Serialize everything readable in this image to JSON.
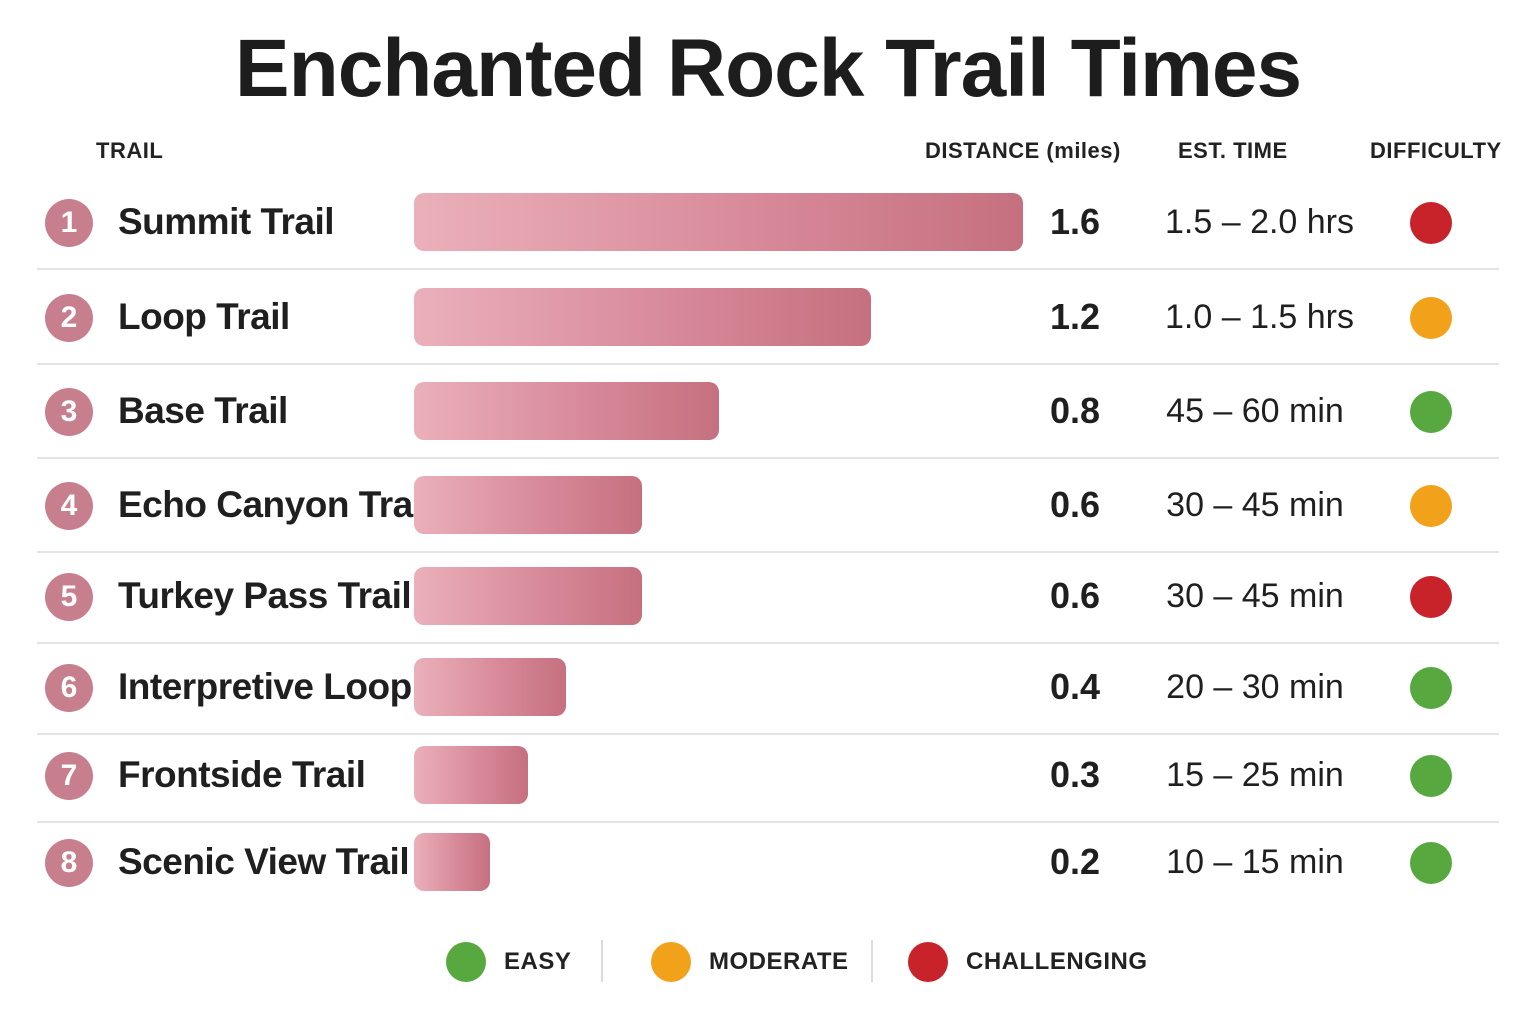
{
  "title": "Enchanted Rock Trail Times",
  "headers": {
    "trail": "TRAIL",
    "distance": "DISTANCE (miles)",
    "time": "EST. TIME",
    "difficulty": "DIFFICULTY"
  },
  "colors": {
    "easy": "#57a83f",
    "moderate": "#f1a21a",
    "challenging": "#c8222a",
    "bar": "#d88a9a",
    "badge": "#c77f8e"
  },
  "legend": [
    {
      "key": "easy",
      "label": "EASY"
    },
    {
      "key": "moderate",
      "label": "MODERATE"
    },
    {
      "key": "challenging",
      "label": "CHALLENGING"
    }
  ],
  "chart_data": {
    "type": "bar",
    "orientation": "horizontal",
    "title": "Enchanted Rock Trail Times",
    "xlabel": "DISTANCE (miles)",
    "xlim": [
      0,
      1.6
    ],
    "categories": [
      "Summit Trail",
      "Loop Trail",
      "Base Trail",
      "Echo Canyon Trail",
      "Turkey Pass Trail",
      "Interpretive Loop",
      "Frontside Trail",
      "Scenic View Trail"
    ],
    "values": [
      1.6,
      1.2,
      0.8,
      0.6,
      0.6,
      0.4,
      0.3,
      0.2
    ],
    "rows": [
      {
        "rank": "1",
        "name": "Summit Trail",
        "distance": 1.6,
        "distance_label": "1.6",
        "time": "1.5 – 2.0 hrs",
        "difficulty": "challenging"
      },
      {
        "rank": "2",
        "name": "Loop Trail",
        "distance": 1.2,
        "distance_label": "1.2",
        "time": "1.0 – 1.5 hrs",
        "difficulty": "moderate"
      },
      {
        "rank": "3",
        "name": "Base Trail",
        "distance": 0.8,
        "distance_label": "0.8",
        "time": "45 – 60 min",
        "difficulty": "easy"
      },
      {
        "rank": "4",
        "name": "Echo Canyon Trail",
        "distance": 0.6,
        "distance_label": "0.6",
        "time": "30 – 45 min",
        "difficulty": "moderate"
      },
      {
        "rank": "5",
        "name": "Turkey Pass Trail",
        "distance": 0.6,
        "distance_label": "0.6",
        "time": "30 – 45 min",
        "difficulty": "challenging"
      },
      {
        "rank": "6",
        "name": "Interpretive Loop",
        "distance": 0.4,
        "distance_label": "0.4",
        "time": "20 – 30 min",
        "difficulty": "easy"
      },
      {
        "rank": "7",
        "name": "Frontside Trail",
        "distance": 0.3,
        "distance_label": "0.3",
        "time": "15 – 25 min",
        "difficulty": "easy"
      },
      {
        "rank": "8",
        "name": "Scenic View Trail",
        "distance": 0.2,
        "distance_label": "0.2",
        "time": "10 – 15 min",
        "difficulty": "easy"
      }
    ]
  }
}
